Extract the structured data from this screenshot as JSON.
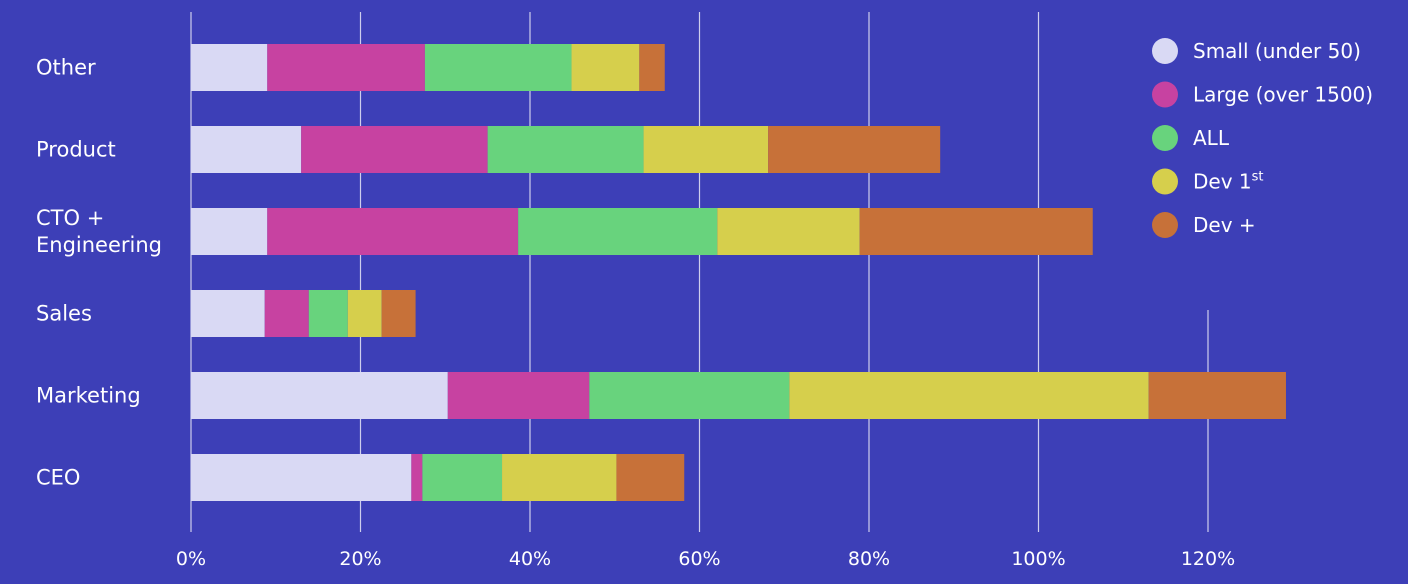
{
  "chart_data": {
    "type": "bar",
    "orientation": "horizontal",
    "stacked": true,
    "categories": [
      "Other",
      "Product",
      "CTO + Engineering",
      "Sales",
      "Marketing",
      "CEO"
    ],
    "category_lines": [
      [
        "Other"
      ],
      [
        "Product"
      ],
      [
        "CTO +",
        "Engineering"
      ],
      [
        "Sales"
      ],
      [
        "Marketing"
      ],
      [
        "CEO"
      ]
    ],
    "series": [
      {
        "name": "Small (under 50)",
        "values": [
          9,
          13,
          9,
          8.7,
          30.3,
          26
        ],
        "color": "#d9d9f4"
      },
      {
        "name": "Large (over 1500)",
        "values": [
          18.6,
          22,
          29.6,
          5.2,
          16.7,
          1.3
        ],
        "color": "#c742a1"
      },
      {
        "name": "ALL",
        "values": [
          17.3,
          18.4,
          23.5,
          4.6,
          23.6,
          9.4
        ],
        "color": "#68d37d"
      },
      {
        "name": "Dev 1st",
        "values": [
          8,
          14.7,
          16.8,
          4,
          42.4,
          13.5
        ],
        "color": "#d6cf4c"
      },
      {
        "name": "Dev +",
        "values": [
          3,
          20.3,
          27.5,
          4,
          16.2,
          8
        ],
        "color": "#c77139"
      }
    ],
    "legend_entries": [
      {
        "text": "Small (under 50)",
        "sup": ""
      },
      {
        "text": "Large (over 1500)",
        "sup": ""
      },
      {
        "text": "ALL",
        "sup": ""
      },
      {
        "text": "Dev 1",
        "sup": "st"
      },
      {
        "text": "Dev +",
        "sup": ""
      }
    ],
    "xlim": [
      0,
      120
    ],
    "xticks": [
      0,
      20,
      40,
      60,
      80,
      100,
      120
    ],
    "xtick_labels": [
      "0%",
      "20%",
      "40%",
      "60%",
      "80%",
      "100%",
      "120%"
    ],
    "grid": true,
    "legend_position": "top-right",
    "title": "",
    "xlabel": "",
    "ylabel": ""
  },
  "colors": {
    "background": "#3d3fb7",
    "gridline": "#ffffff"
  }
}
